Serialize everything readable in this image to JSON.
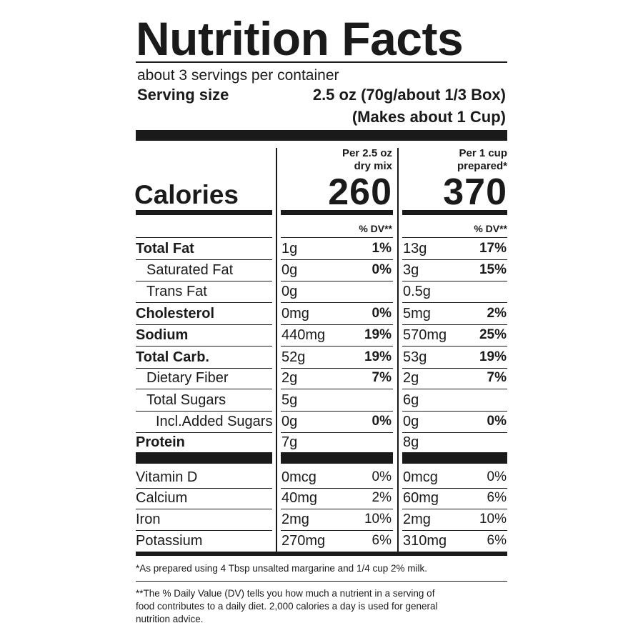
{
  "label": {
    "title": "Nutrition Facts",
    "servings_per_container": "about 3 servings per container",
    "serving_size_label": "Serving size",
    "serving_size_value": "2.5 oz (70g/about 1/3 Box)",
    "serving_size_value2": "(Makes about 1 Cup)",
    "calories_label": "Calories",
    "col1_head_line1": "Per 2.5 oz",
    "col1_head_line2": "dry mix",
    "col2_head_line1": "Per 1 cup",
    "col2_head_line2": "prepared*",
    "col1_calories": "260",
    "col2_calories": "370",
    "dv_head": "% DV**"
  },
  "nutrients": [
    {
      "label": "Total Fat",
      "amt1": "1g",
      "pct1": "1%",
      "amt2": "13g",
      "pct2": "17%"
    },
    {
      "label": "Saturated Fat",
      "amt1": "0g",
      "pct1": "0%",
      "amt2": "3g",
      "pct2": "15%"
    },
    {
      "label": "Trans Fat",
      "amt1": "0g",
      "pct1": "",
      "amt2": "0.5g",
      "pct2": ""
    },
    {
      "label": "Cholesterol",
      "amt1": "0mg",
      "pct1": "0%",
      "amt2": "5mg",
      "pct2": "2%"
    },
    {
      "label": "Sodium",
      "amt1": "440mg",
      "pct1": "19%",
      "amt2": "570mg",
      "pct2": "25%"
    },
    {
      "label": "Total Carb.",
      "amt1": "52g",
      "pct1": "19%",
      "amt2": "53g",
      "pct2": "19%"
    },
    {
      "label": "Dietary Fiber",
      "amt1": "2g",
      "pct1": "7%",
      "amt2": "2g",
      "pct2": "7%"
    },
    {
      "label": "Total Sugars",
      "amt1": "5g",
      "pct1": "",
      "amt2": "6g",
      "pct2": ""
    },
    {
      "label": "Incl.Added Sugars",
      "amt1": "0g",
      "pct1": "0%",
      "amt2": "0g",
      "pct2": "0%"
    },
    {
      "label": "Protein",
      "amt1": "7g",
      "pct1": "",
      "amt2": "8g",
      "pct2": ""
    }
  ],
  "vitamins": [
    {
      "label": "Vitamin D",
      "amt1": "0mcg",
      "pct1": "0%",
      "amt2": "0mcg",
      "pct2": "0%"
    },
    {
      "label": "Calcium",
      "amt1": "40mg",
      "pct1": "2%",
      "amt2": "60mg",
      "pct2": "6%"
    },
    {
      "label": "Iron",
      "amt1": "2mg",
      "pct1": "10%",
      "amt2": "2mg",
      "pct2": "10%"
    },
    {
      "label": "Potassium",
      "amt1": "270mg",
      "pct1": "6%",
      "amt2": "310mg",
      "pct2": "6%"
    }
  ],
  "footnotes": {
    "prepared": "*As prepared using 4 Tbsp unsalted margarine and 1/4 cup 2% milk.",
    "dv_line1": "**The % Daily Value (DV) tells you how much a nutrient in a serving of",
    "dv_line2": "food contributes to a daily diet. 2,000 calories a day is used for general",
    "dv_line3": "nutrition advice."
  }
}
